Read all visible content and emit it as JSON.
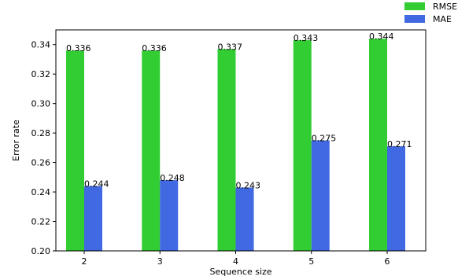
{
  "chart_data": {
    "type": "bar",
    "xlabel": "Sequence size",
    "ylabel": "Error rate",
    "categories": [
      "2",
      "3",
      "4",
      "5",
      "6"
    ],
    "series": [
      {
        "name": "RMSE",
        "color": "#32cd32",
        "values": [
          0.336,
          0.336,
          0.337,
          0.343,
          0.344
        ],
        "labels": [
          "0.336",
          "0.336",
          "0.337",
          "0.343",
          "0.344"
        ]
      },
      {
        "name": "MAE",
        "color": "#4169e1",
        "values": [
          0.244,
          0.248,
          0.243,
          0.275,
          0.271
        ],
        "labels": [
          "0.244",
          "0.248",
          "0.243",
          "0.275",
          "0.271"
        ]
      }
    ],
    "ylim": [
      0.2,
      0.35
    ],
    "yticks": [
      "0.20",
      "0.22",
      "0.24",
      "0.26",
      "0.28",
      "0.30",
      "0.32",
      "0.34"
    ],
    "grid": false,
    "legend_position": "top-right"
  }
}
